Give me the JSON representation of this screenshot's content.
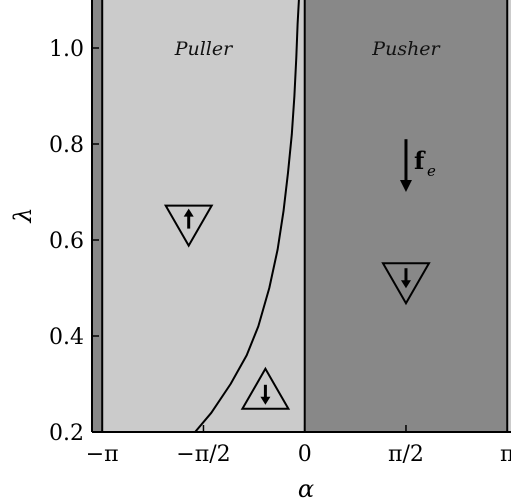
{
  "chart_data": {
    "type": "region-map",
    "xlabel": "α",
    "ylabel": "λ",
    "xlim": [
      -3.3,
      3.2
    ],
    "ylim": [
      0.2,
      1.1
    ],
    "xticks": [
      {
        "value": -3.14159,
        "label": "−π"
      },
      {
        "value": -1.5708,
        "label": "−π/2"
      },
      {
        "value": 0,
        "label": "0"
      },
      {
        "value": 1.5708,
        "label": "π/2"
      },
      {
        "value": 3.14159,
        "label": "π"
      }
    ],
    "yticks": [
      {
        "value": 0.2,
        "label": "0.2"
      },
      {
        "value": 0.4,
        "label": "0.4"
      },
      {
        "value": 0.6,
        "label": "0.6"
      },
      {
        "value": 0.8,
        "label": "0.8"
      },
      {
        "value": 1.0,
        "label": "1.0"
      }
    ],
    "regions": [
      {
        "x0": -3.3,
        "x1": -3.14159,
        "color": "#888888"
      },
      {
        "x0": -3.14159,
        "x1": 0,
        "color": "#cbcbcb",
        "label": "Puller"
      },
      {
        "x0": 0,
        "x1": 3.14159,
        "color": "#888888",
        "label": "Pusher"
      },
      {
        "x0": 3.14159,
        "x1": 3.2,
        "color": "#cbcbcb"
      }
    ],
    "vertical_lines": [
      -3.14159,
      0,
      3.14159
    ],
    "boundary_curve": {
      "x": [
        -1.7,
        -1.45,
        -1.15,
        -0.9,
        -0.72,
        -0.55,
        -0.42,
        -0.33,
        -0.26,
        -0.2,
        -0.16,
        -0.13,
        -0.11,
        -0.09
      ],
      "y": [
        0.2,
        0.24,
        0.3,
        0.36,
        0.42,
        0.5,
        0.58,
        0.66,
        0.74,
        0.82,
        0.9,
        0.98,
        1.05,
        1.1
      ]
    },
    "markers": [
      {
        "x": -1.8,
        "y": 0.63,
        "orientation": "down",
        "arrow": "up"
      },
      {
        "x": -0.61,
        "y": 0.29,
        "orientation": "up",
        "arrow": "down"
      },
      {
        "x": 1.5708,
        "y": 0.51,
        "orientation": "down",
        "arrow": "down"
      }
    ],
    "force_arrow": {
      "x": 1.5708,
      "y_start": 0.81,
      "y_end": 0.7,
      "label": "f",
      "subscript": "e"
    },
    "grid": false
  }
}
